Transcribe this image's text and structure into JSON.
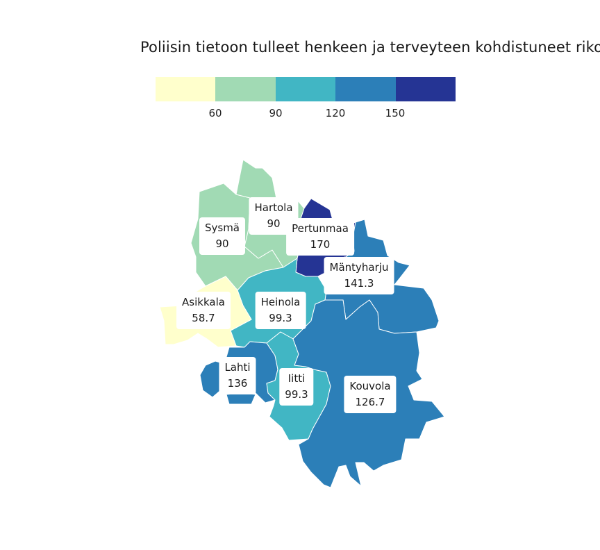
{
  "title": "Poliisin tietoon tulleet henkeen ja terveyteen kohdistuneet rikok",
  "legend": {
    "colors": [
      "#ffffcc",
      "#a1dab4",
      "#41b6c4",
      "#2c7fb8",
      "#253494"
    ],
    "ticks": [
      "60",
      "90",
      "120",
      "150"
    ]
  },
  "regions": [
    {
      "name": "Sysmä",
      "value": "90",
      "color": "#a1dab4"
    },
    {
      "name": "Hartola",
      "value": "90",
      "color": "#a1dab4"
    },
    {
      "name": "Pertunmaa",
      "value": "170",
      "color": "#253494"
    },
    {
      "name": "Mäntyharju",
      "value": "141.3",
      "color": "#2c7fb8"
    },
    {
      "name": "Asikkala",
      "value": "58.7",
      "color": "#ffffcc"
    },
    {
      "name": "Heinola",
      "value": "99.3",
      "color": "#41b6c4"
    },
    {
      "name": "Lahti",
      "value": "136",
      "color": "#2c7fb8"
    },
    {
      "name": "Iitti",
      "value": "99.3",
      "color": "#41b6c4"
    },
    {
      "name": "Kouvola",
      "value": "126.7",
      "color": "#2c7fb8"
    }
  ]
}
